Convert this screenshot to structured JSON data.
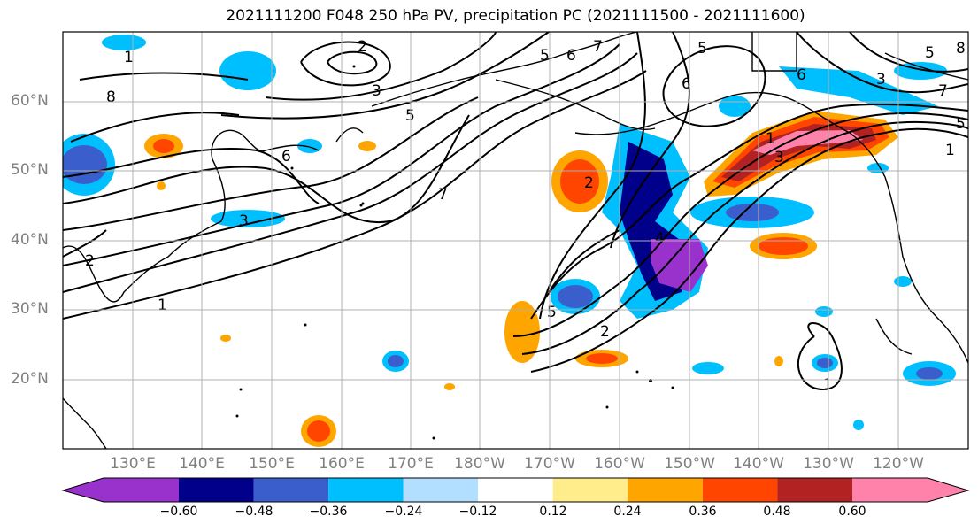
{
  "title": "2021111200 F048 250 hPa PV, precipitation PC (2021111500 - 2021111600)",
  "lat_labels": [
    "60°N",
    "50°N",
    "40°N",
    "30°N",
    "20°N"
  ],
  "lon_labels": [
    "130°E",
    "140°E",
    "150°E",
    "160°E",
    "170°E",
    "180°W",
    "170°W",
    "160°W",
    "150°W",
    "140°W",
    "130°W",
    "120°W"
  ],
  "colorbar": {
    "ticks": [
      "−0.60",
      "−0.48",
      "−0.36",
      "−0.24",
      "−0.12",
      "0.12",
      "0.24",
      "0.36",
      "0.48",
      "0.60"
    ],
    "colors": [
      "#9932cc",
      "#00008b",
      "#3a5fcd",
      "#00bfff",
      "#b2dfff",
      "#ffffff",
      "#ffec8b",
      "#ffa500",
      "#ff4500",
      "#b22222",
      "#ff82ab"
    ]
  },
  "contour_labels": [
    "2",
    "3",
    "5",
    "6",
    "7",
    "8",
    "1",
    "5",
    "6",
    "7",
    "5",
    "6",
    "8",
    "7",
    "3",
    "6",
    "2",
    "1",
    "2",
    "5",
    "1",
    "1",
    "5",
    "3",
    "3",
    "4",
    "1",
    "2",
    "5"
  ]
}
